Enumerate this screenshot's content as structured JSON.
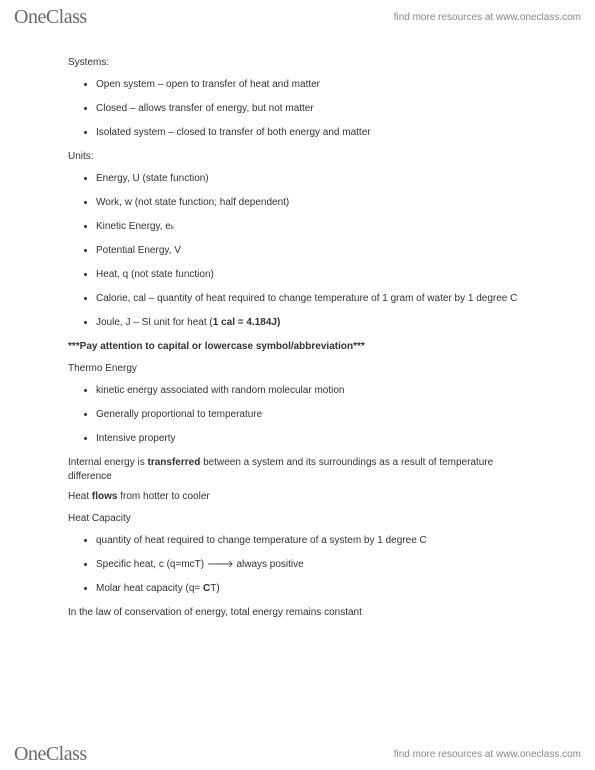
{
  "brand": {
    "part1": "One",
    "part2": "Class"
  },
  "tagline": "find more resources at www.oneclass.com",
  "sections": {
    "systems": {
      "heading": "Systems:",
      "items": [
        "Open system – open to transfer of heat and matter",
        "Closed – allows transfer of energy, but not matter",
        "Isolated system – closed to transfer of both energy and matter"
      ]
    },
    "units": {
      "heading": "Units:",
      "items": [
        "Energy, U (state function)",
        "Work, w (not state function; half dependent)",
        "Kinetic Energy, eₖ",
        "Potential Energy, V",
        "Heat, q (not state function)",
        "Calorie, cal – quantity of heat required to change temperature of 1 gram of water by 1 degree C",
        "Joule, J – SI unit for heat (1 cal = 4.184J)"
      ]
    },
    "note": "***Pay attention to capital or lowercase symbol/abbreviation***",
    "thermo": {
      "heading": "Thermo Energy",
      "items": [
        "kinetic energy associated with random molecular motion",
        "Generally proportional to temperature",
        "Intensive property"
      ]
    },
    "internal_energy_pre": "Internal energy is ",
    "internal_energy_bold": "transferred",
    "internal_energy_post": " between a system and its surroundings as a result of temperature difference",
    "heatflow_pre": "Heat ",
    "heatflow_bold": "flows",
    "heatflow_post": " from hotter to cooler",
    "heatcap": {
      "heading": "Heat Capacity",
      "items": [
        "quantity of heat required to change temperature of a system by 1 degree C",
        "Specific heat, c (q=mcT) 🡒 always positive",
        "Molar heat capacity (q= CT)"
      ]
    },
    "conservation": "In the law of conservation of energy, total energy remains constant"
  }
}
